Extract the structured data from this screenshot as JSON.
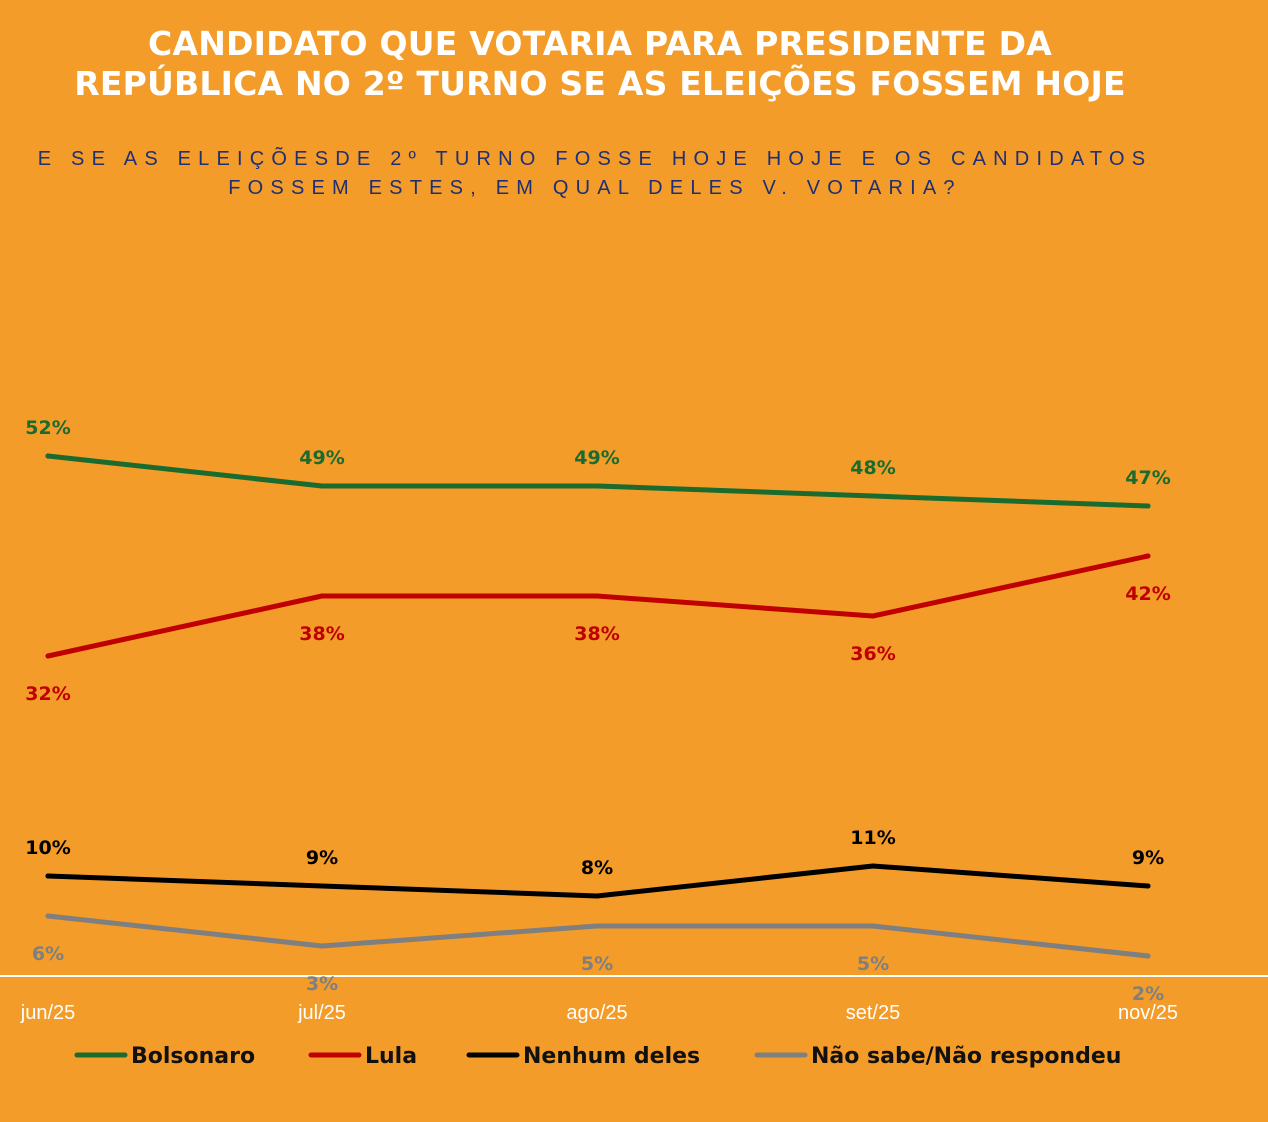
{
  "header": {
    "title_line1": "CANDIDATO QUE VOTARIA PARA PRESIDENTE DA",
    "title_line2": "REPÚBLICA NO 2º TURNO SE AS ELEIÇÕES FOSSEM HOJE",
    "subtitle_line1": "E SE AS ELEIÇÕESDE 2º TURNO FOSSE HOJE HOJE E OS CANDIDATOS",
    "subtitle_line2": "FOSSEM ESTES, EM QUAL DELES V. VOTARIA?"
  },
  "colors": {
    "background": "#F39C2A",
    "axis": "#FFFFFF"
  },
  "chart_data": {
    "type": "line",
    "title": "CANDIDATO QUE VOTARIA PARA PRESIDENTE DA REPÚBLICA NO 2º TURNO SE AS ELEIÇÕES FOSSEM HOJE",
    "xlabel": "",
    "ylabel": "",
    "ylim": [
      0,
      60
    ],
    "grid": false,
    "legend_position": "bottom",
    "categories": [
      "jun/25",
      "jul/25",
      "ago/25",
      "set/25",
      "nov/25"
    ],
    "series": [
      {
        "name": "Bolsonaro",
        "color": "#1B6B2E",
        "values": [
          52,
          49,
          49,
          48,
          47
        ],
        "labels": [
          "52%",
          "49%",
          "49%",
          "48%",
          "47%"
        ],
        "label_position": "above"
      },
      {
        "name": "Lula",
        "color": "#C00000",
        "values": [
          32,
          38,
          38,
          36,
          42
        ],
        "labels": [
          "32%",
          "38%",
          "38%",
          "36%",
          "42%"
        ],
        "label_position": "below"
      },
      {
        "name": "Nenhum deles",
        "color": "#000000",
        "values": [
          10,
          9,
          8,
          11,
          9
        ],
        "labels": [
          "10%",
          "9%",
          "8%",
          "11%",
          "9%"
        ],
        "label_position": "above"
      },
      {
        "name": "Não sabe/Não respondeu",
        "color": "#7F7F7F",
        "values": [
          6,
          3,
          5,
          5,
          2
        ],
        "labels": [
          "6%",
          "3%",
          "5%",
          "5%",
          "2%"
        ],
        "label_position": "below"
      }
    ]
  }
}
